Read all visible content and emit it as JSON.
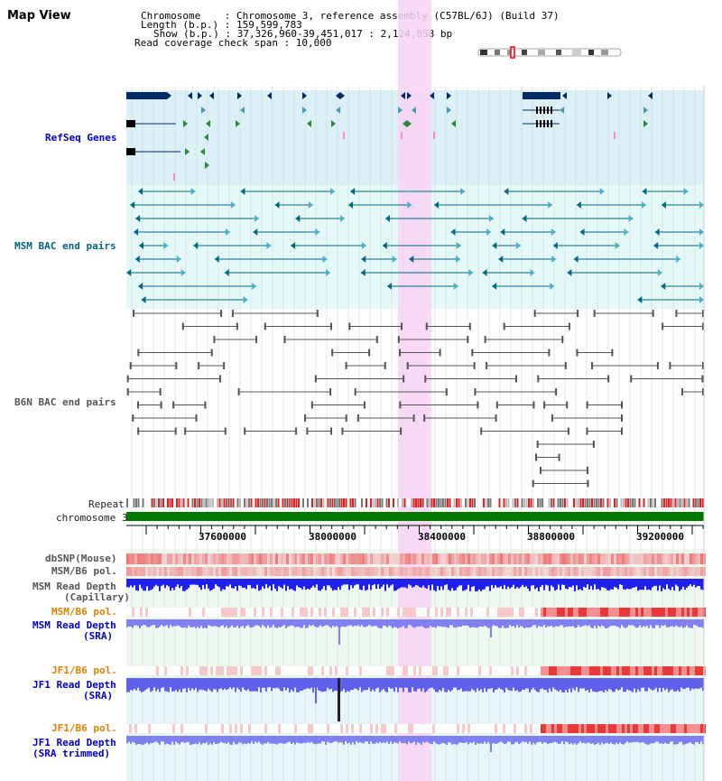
{
  "window": {
    "title": "Map View"
  },
  "info": {
    "lines": [
      "Chromosome    : Chromosome 3, reference assembly (C57BL/6J) (Build 37)",
      "Length (b.p.) : 159,599,783",
      "Show (b.p.) : 37,326,960-39,451,017 : 2,124,058 bp",
      "Read coverage check span : 10,000"
    ]
  },
  "tracks": {
    "refseq": "RefSeq Genes",
    "msm_bac": "MSM BAC end pairs",
    "b6n_bac": "B6N BAC end pairs",
    "repeat": "Repeat",
    "chromosome": "chromosome 3",
    "dbsnp": "dbSNP(Mouse)",
    "msm_b6_pol": "MSM/B6 pol.",
    "msm_depth_cap_1": "MSM Read Depth",
    "msm_depth_cap_2": "(Capillary)",
    "msm_b6_pol_2": "MSM/B6 pol.",
    "msm_depth_sra_1": "MSM Read Depth",
    "msm_depth_sra_2": "(SRA)",
    "jf1_b6_pol": "JF1/B6 pol.",
    "jf1_depth_sra_1": "JF1 Read Depth",
    "jf1_depth_sra_2": "(SRA)",
    "jf1_b6_pol_2": "JF1/B6 pol.",
    "jf1_depth_trim_1": "JF1 Read Depth",
    "jf1_depth_trim_2": "(SRA trimmed)"
  },
  "axis": {
    "ticks": [
      "37600000",
      "38000000",
      "38400000",
      "38800000",
      "39200000"
    ]
  },
  "colors": {
    "refseq_bg": "#dcf0f8",
    "msm_bg": "#e4f8f8",
    "highlight": "#f8d4f4",
    "chromosome_bar": "#007700",
    "depth_blue": "#2020ee",
    "depth_light": "#8080f0",
    "pol_red": "#e03030",
    "gene_dark": "#002a66",
    "teal": "#006a80"
  }
}
